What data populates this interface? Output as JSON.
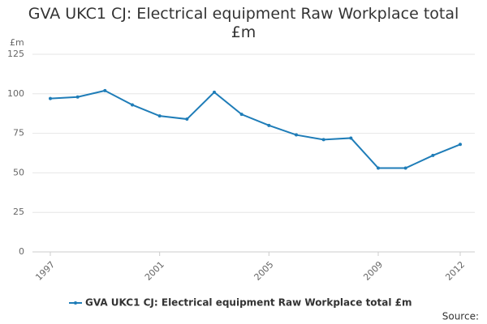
{
  "chart_data": {
    "type": "line",
    "title": "GVA UKC1 CJ: Electrical equipment Raw Workplace total £m",
    "ylabel": "£m",
    "source": "Source:",
    "x": [
      1997,
      1998,
      1999,
      2000,
      2001,
      2002,
      2003,
      2004,
      2005,
      2006,
      2007,
      2008,
      2009,
      2010,
      2011,
      2012
    ],
    "series": [
      {
        "name": "GVA UKC1 CJ: Electrical equipment Raw Workplace total £m",
        "color": "#1f7db8",
        "values": [
          97,
          98,
          102,
          93,
          86,
          84,
          101,
          87,
          80,
          74,
          71,
          72,
          53,
          53,
          61,
          68
        ]
      }
    ],
    "xlim": [
      1997,
      2012
    ],
    "xticks": [
      1997,
      2001,
      2005,
      2009,
      2012
    ],
    "ylim": [
      0,
      125
    ],
    "yticks": [
      0,
      25,
      50,
      75,
      100,
      125
    ],
    "grid": true
  }
}
